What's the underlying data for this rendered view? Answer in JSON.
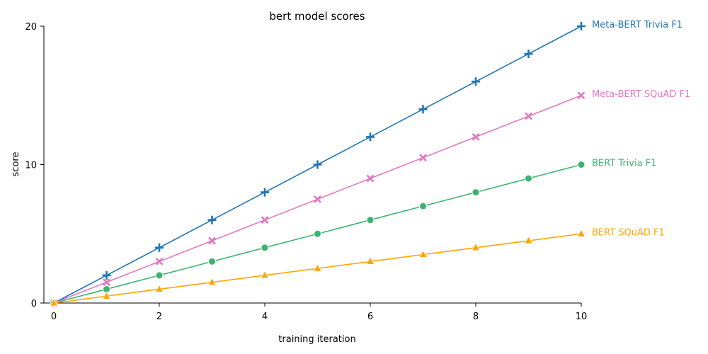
{
  "chart_data": {
    "type": "line",
    "title": "bert model scores",
    "xlabel": "training iteration",
    "ylabel": "score",
    "xlim": [
      0,
      10
    ],
    "ylim": [
      0,
      20
    ],
    "x_ticks": [
      0,
      2,
      4,
      6,
      8,
      10
    ],
    "y_ticks": [
      0,
      10,
      20
    ],
    "grid": false,
    "legend": "direct labels at line ends (right)",
    "x": [
      0,
      1,
      2,
      3,
      4,
      5,
      6,
      7,
      8,
      9,
      10
    ],
    "series": [
      {
        "name": "Meta-BERT Trivia F1",
        "color": "#1f77b4",
        "marker": "plus",
        "values": [
          0,
          2,
          4,
          6,
          8,
          10,
          12,
          14,
          16,
          18,
          20
        ]
      },
      {
        "name": "Meta-BERT SQuAD F1",
        "color": "#e377c2",
        "marker": "x",
        "values": [
          0,
          1.5,
          3,
          4.5,
          6,
          7.5,
          9,
          10.5,
          12,
          13.5,
          15
        ]
      },
      {
        "name": "BERT Trivia F1",
        "color": "#3cb371",
        "marker": "circle",
        "values": [
          0,
          1,
          2,
          3,
          4,
          5,
          6,
          7,
          8,
          9,
          10
        ]
      },
      {
        "name": "BERT SQuAD F1",
        "color": "#ffa500",
        "marker": "triangle",
        "values": [
          0,
          0.5,
          1,
          1.5,
          2,
          2.5,
          3,
          3.5,
          4,
          4.5,
          5
        ]
      }
    ]
  }
}
